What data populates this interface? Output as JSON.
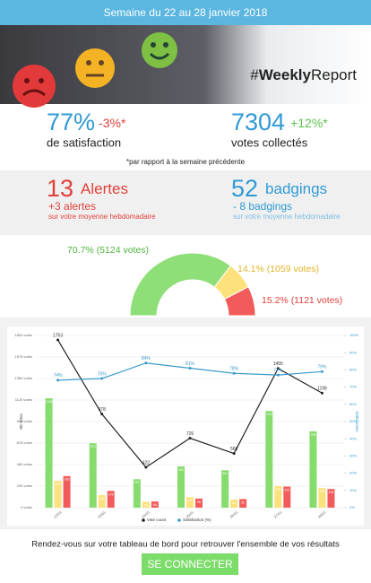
{
  "header": {
    "week": "Semaine du 22 au 28 janvier 2018"
  },
  "hero": {
    "tag": [
      "#",
      "Weekly",
      "Report"
    ]
  },
  "stats": [
    {
      "value": "77%",
      "change": "-3%*",
      "label": "de satisfaction"
    },
    {
      "value": "7304",
      "change": "+12%*",
      "label": "votes collectés"
    }
  ],
  "note": "*par rapport à la semaine précédente",
  "alerts": [
    {
      "value": "13",
      "unit": "Alertes",
      "change": "+3 alertes",
      "sub": "sur votre moyenne hebdomadaire"
    },
    {
      "value": "52",
      "unit": "badgings",
      "change": "- 8 badgings",
      "sub": "sur votre moyenne hebdomadaire"
    }
  ],
  "chart_data": [
    {
      "type": "gauge",
      "values": [
        70.7,
        14.1,
        15.2
      ],
      "value_labels": [
        "70.7% (5124 votes)",
        "14.1% (1059 votes)",
        "15.2% (1121 votes)"
      ],
      "colors": [
        "#8fdf78",
        "#fde17c",
        "#f25b5b"
      ]
    },
    {
      "type": "combo",
      "categories": [
        "22/01",
        "23/01",
        "24/01",
        "25/01",
        "26/01",
        "27/01",
        "28/01"
      ],
      "series": [
        {
          "type": "bar",
          "color": "#86dc6c",
          "values": [
            1143,
            673,
            297,
            431,
            391,
            1010,
            798
          ]
        },
        {
          "type": "bar",
          "color": "#fde17c",
          "values": [
            280,
            130,
            60,
            110,
            85,
            225,
            205
          ]
        },
        {
          "type": "bar",
          "color": "#f25b5b",
          "values": [
            330,
            175,
            65,
            95,
            90,
            220,
            195
          ]
        },
        {
          "name": "Vote count",
          "type": "line",
          "color": "#222222",
          "values": [
            1753,
            978,
            422,
            726,
            566,
            1455,
            1198
          ]
        },
        {
          "name": "Satisfaction (%)",
          "type": "line",
          "axis": "y2",
          "color": "#3a9ac9",
          "values": [
            74,
            75,
            84,
            81,
            78,
            77,
            79
          ],
          "value_labels": [
            "74%",
            "75%",
            "84%",
            "81%",
            "78%",
            "77%",
            "79%"
          ]
        }
      ],
      "ylabel": "Nb votes",
      "y2label": "Satisfaction",
      "ylim": [
        0,
        1800
      ],
      "yticks": [
        {
          "value": 0,
          "label": "0 votes"
        },
        {
          "value": 225,
          "label": "225 votes"
        },
        {
          "value": 450,
          "label": "450 votes"
        },
        {
          "value": 675,
          "label": "675 votes"
        },
        {
          "value": 900,
          "label": "900 votes"
        },
        {
          "value": 1125,
          "label": "1125 votes"
        },
        {
          "value": 1350,
          "label": "1350 votes"
        },
        {
          "value": 1575,
          "label": "1575 votes"
        },
        {
          "value": 1800,
          "label": "1800 votes"
        }
      ],
      "y2lim": [
        0,
        100
      ],
      "y2ticks": [
        {
          "value": 0,
          "label": "0%"
        },
        {
          "value": 10,
          "label": "10%"
        },
        {
          "value": 20,
          "label": "20%"
        },
        {
          "value": 30,
          "label": "30%"
        },
        {
          "value": 40,
          "label": "40%"
        },
        {
          "value": 50,
          "label": "50%"
        },
        {
          "value": 60,
          "label": "60%"
        },
        {
          "value": 70,
          "label": "70%"
        },
        {
          "value": 80,
          "label": "80%"
        },
        {
          "value": 90,
          "label": "90%"
        },
        {
          "value": 100,
          "label": "100%"
        }
      ],
      "grid": true
    }
  ],
  "footer": {
    "text": "Rendez-vous sur votre tableau de bord pour retrouver l'ensemble de vos résultats",
    "button": "SE CONNECTER"
  }
}
